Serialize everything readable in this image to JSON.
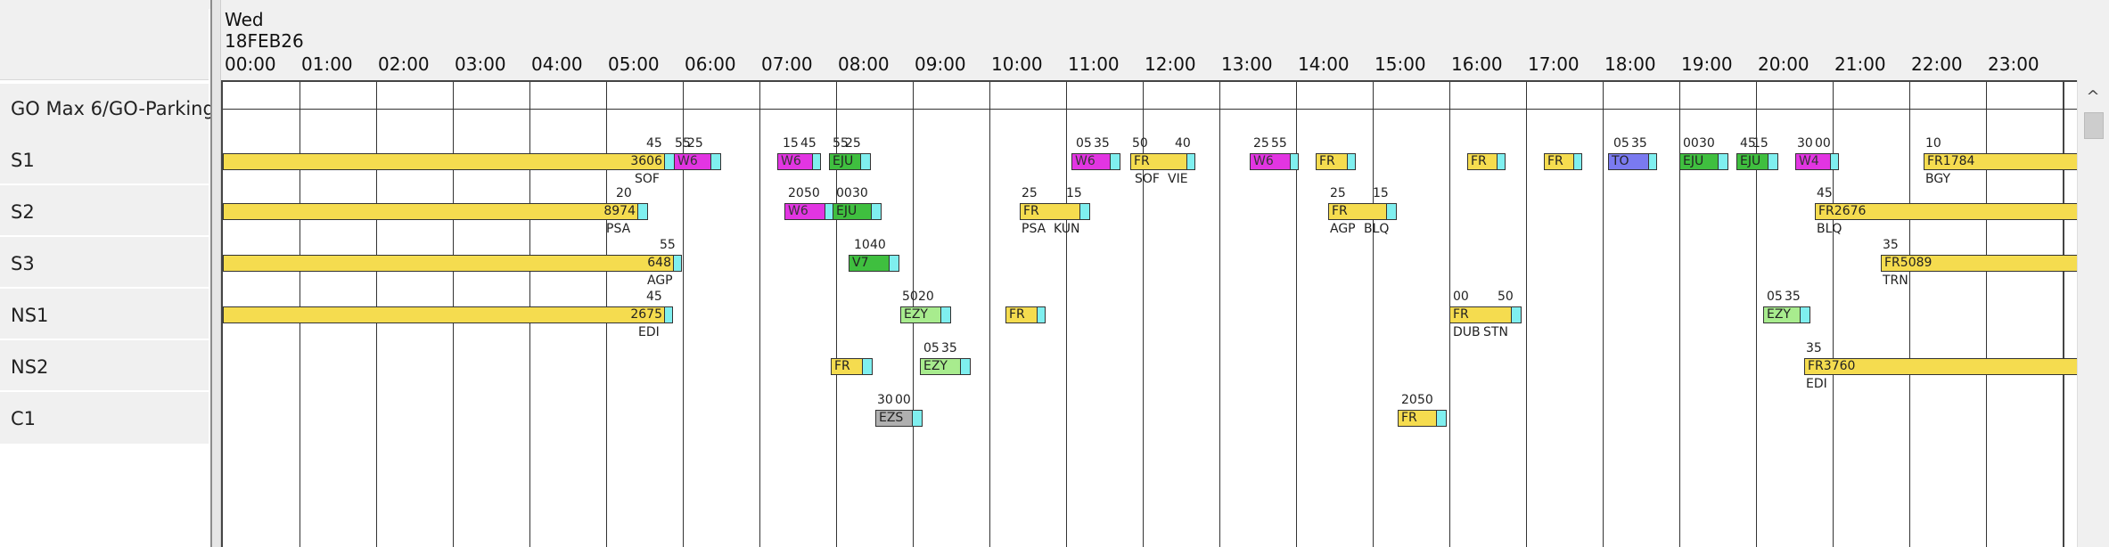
{
  "header": {
    "day": "Wed",
    "date": "18FEB26",
    "hours": [
      "00:00",
      "01:00",
      "02:00",
      "03:00",
      "04:00",
      "05:00",
      "06:00",
      "07:00",
      "08:00",
      "09:00",
      "10:00",
      "11:00",
      "12:00",
      "13:00",
      "14:00",
      "15:00",
      "16:00",
      "17:00",
      "18:00",
      "19:00",
      "20:00",
      "21:00",
      "22:00",
      "23:00"
    ]
  },
  "rows": [
    "GO Max 6/GO-Parking",
    "S1",
    "S2",
    "S3",
    "NS1",
    "NS2",
    "C1"
  ],
  "bar_labels": {
    "s1": [
      "3606",
      "W6",
      "W6",
      "EJU",
      "W6",
      "FR",
      "W6",
      "FR",
      "FR",
      "FR",
      "TO",
      "EJU",
      "EJU",
      "W4",
      "FR1784"
    ],
    "s2": [
      "8974",
      "W6",
      "EJU",
      "FR",
      "FR",
      "FR2676"
    ],
    "s3": [
      "648",
      "V7",
      "FR5089"
    ],
    "ns1": [
      "2675",
      "EZY",
      "FR",
      "FR",
      "EZY"
    ],
    "ns2": [
      "FR",
      "EZY",
      "FR3760"
    ],
    "c1": [
      "EZS",
      "FR"
    ]
  },
  "time_labels": {
    "s1": [
      "45",
      "55",
      "25",
      "15",
      "45",
      "55",
      "25",
      "05",
      "35",
      "50",
      "40",
      "25",
      "55",
      "05",
      "35",
      "00",
      "30",
      "45",
      "15",
      "30",
      "00",
      "10"
    ],
    "s2": [
      "20",
      "20",
      "50",
      "00",
      "30",
      "25",
      "15",
      "25",
      "15",
      "45"
    ],
    "s3": [
      "55",
      "10",
      "40",
      "35"
    ],
    "ns1": [
      "45",
      "50",
      "20",
      "00",
      "50",
      "05",
      "35"
    ],
    "ns2": [
      "05",
      "35",
      "35"
    ],
    "c1": [
      "30",
      "00",
      "20",
      "50"
    ]
  },
  "airport_labels": {
    "s1": [
      "SOF",
      "SOF",
      "VIE",
      "BGY"
    ],
    "s2": [
      "PSA",
      "PSA",
      "KUN",
      "AGP",
      "BLQ",
      "BLQ"
    ],
    "s3": [
      "AGP",
      "TRN"
    ],
    "ns1": [
      "EDI",
      "DUB",
      "STN"
    ],
    "ns2": [
      "EDI"
    ]
  },
  "colors": {
    "fr_yellow": "#f5dc4f",
    "w6_magenta": "#e235e2",
    "eju_green": "#3fbf3f",
    "ezy_light_green": "#a8ec8e",
    "to_blue": "#7a7af0",
    "ezs_gray": "#b0b0b0",
    "turnaround_cyan": "#7fefef"
  },
  "scroll": {
    "up_arrow": "^"
  }
}
